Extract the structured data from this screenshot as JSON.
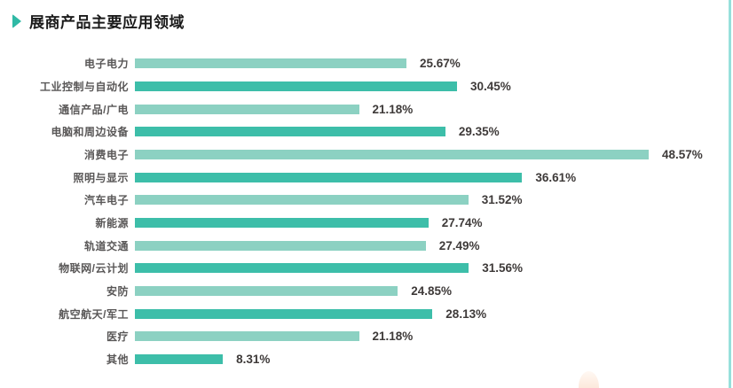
{
  "header": {
    "title": "展商产品主要应用领域"
  },
  "chart_data": {
    "type": "bar",
    "orientation": "horizontal",
    "title": "展商产品主要应用领域",
    "categories": [
      "电子电力",
      "工业控制与自动化",
      "通信产品/广电",
      "电脑和周边设备",
      "消费电子",
      "照明与显示",
      "汽车电子",
      "新能源",
      "轨道交通",
      "物联网/云计划",
      "安防",
      "航空航天/军工",
      "医疗",
      "其他"
    ],
    "values": [
      25.67,
      30.45,
      21.18,
      29.35,
      48.57,
      36.61,
      31.52,
      27.74,
      27.49,
      31.56,
      24.85,
      28.13,
      21.18,
      8.31
    ],
    "value_labels": [
      "25.67%",
      "30.45%",
      "21.18%",
      "29.35%",
      "48.57%",
      "36.61%",
      "31.52%",
      "27.74%",
      "27.49%",
      "31.56%",
      "24.85%",
      "28.13%",
      "21.18%",
      "8.31%"
    ],
    "xlim": [
      0,
      50
    ],
    "grid": false,
    "axes_visible": false,
    "legend": "none",
    "bar_colors_alternating": [
      "#8CD1C2",
      "#3DBEA9"
    ]
  },
  "colors": {
    "accent_light": "#8CD1C2",
    "accent_dark": "#3DBEA9",
    "title_arrow": "#2FB9A5",
    "title_text": "#1a1a1a",
    "label_text": "#595757",
    "value_text": "#3E3A39",
    "right_border": "#97E0DB",
    "decor_peach": "#FCE9DC"
  }
}
